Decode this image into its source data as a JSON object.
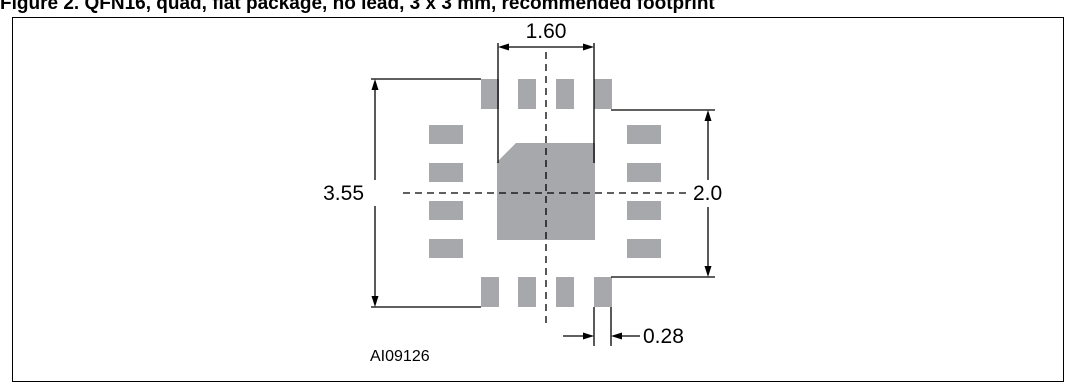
{
  "caption": "Figure 2. QFN16, quad, flat package, no lead, 3 x 3 mm, recommended footprint",
  "labels": {
    "width_top": "1.60",
    "height_left": "3.55",
    "height_right": "2.0",
    "pad_width": "0.28",
    "figure_id": "AI09126"
  },
  "colors": {
    "pad": "#a6a8ab",
    "line": "#000000"
  }
}
